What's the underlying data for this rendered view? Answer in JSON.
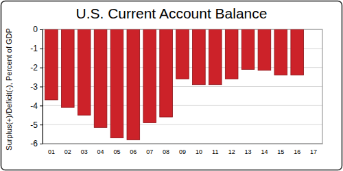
{
  "chart_data": {
    "type": "bar",
    "title": "U.S. Current Account Balance",
    "y_label": "Surplus(+)/Deficit(-), Percent of GDP",
    "categories": [
      "01",
      "02",
      "03",
      "04",
      "05",
      "06",
      "07",
      "08",
      "09",
      "10",
      "11",
      "12",
      "13",
      "14",
      "15",
      "16",
      "17"
    ],
    "values": [
      -3.7,
      -4.1,
      -4.5,
      -5.15,
      -5.7,
      -5.8,
      -4.9,
      -4.6,
      -2.6,
      -2.9,
      -2.9,
      -2.6,
      -2.1,
      -2.15,
      -2.4,
      -2.4,
      null
    ],
    "color": "#cc2229",
    "ylim": [
      -6,
      0
    ],
    "yticks": [
      0,
      -1,
      -2,
      -3,
      -4,
      -5,
      -6
    ],
    "grid": true
  }
}
